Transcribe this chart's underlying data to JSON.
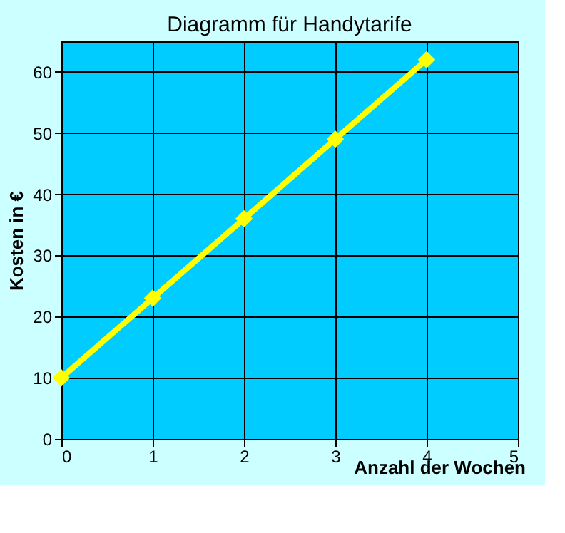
{
  "chart_data": {
    "type": "line",
    "title": "Diagramm für Handytarife",
    "xlabel": "Anzahl der Wochen",
    "ylabel": "Kosten in €",
    "x": [
      0,
      1,
      2,
      3,
      4
    ],
    "series": [
      {
        "color": "#ffff00",
        "values": [
          10,
          23,
          36,
          49,
          62
        ]
      }
    ],
    "xlim": [
      0,
      5
    ],
    "xticks": [
      0,
      1,
      2,
      3,
      4,
      5
    ],
    "ylim": [
      0,
      65
    ],
    "yticks": [
      0,
      10,
      20,
      30,
      40,
      50,
      60
    ],
    "grid": true,
    "marker": "diamond",
    "line_style": "solid"
  }
}
